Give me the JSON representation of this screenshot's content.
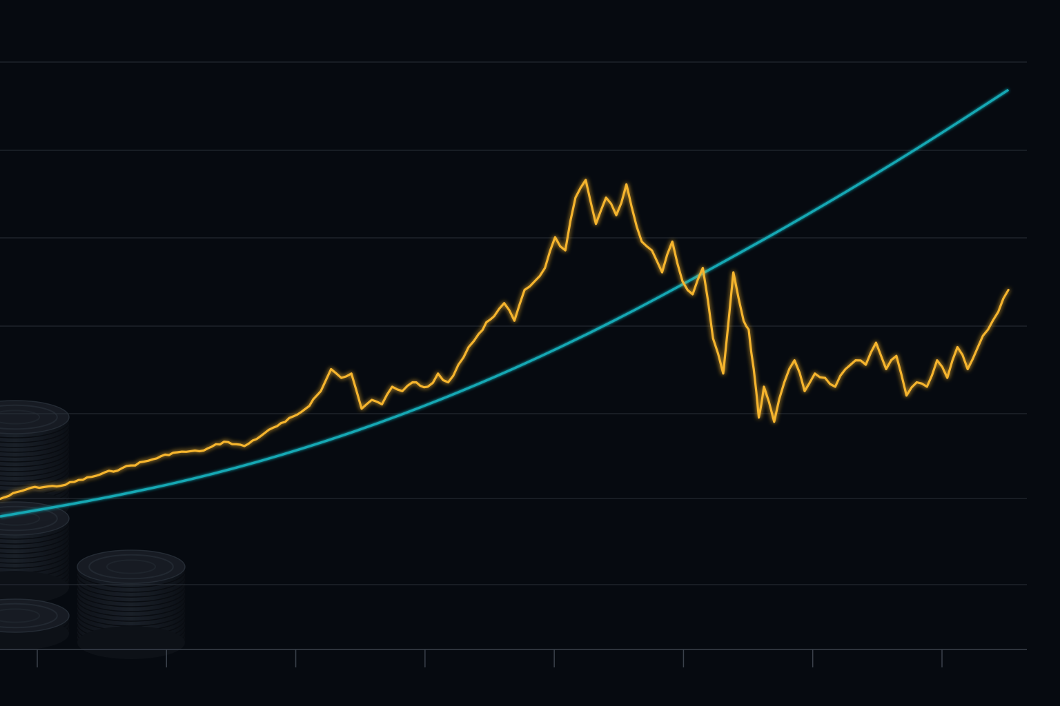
{
  "colors": {
    "background": "#060a10",
    "gridline": "#2a3039",
    "axis": "#3a414b",
    "price_line": "#f6b52e",
    "trend_line": "#12a8b4",
    "coin": "#1a1f27"
  },
  "decoration": {
    "icon": "coin-stack-icon"
  },
  "chart_data": {
    "type": "line",
    "title": "",
    "xlabel": "",
    "ylabel": "",
    "x_ticks": 8,
    "xlim": [
      0,
      100
    ],
    "ylim": [
      0,
      100
    ],
    "grid": true,
    "legend": "none",
    "series": [
      {
        "role": "price",
        "color": "#f6b52e",
        "x": [
          0,
          3,
          6,
          9,
          12,
          15,
          17,
          20,
          22,
          24,
          26,
          28,
          30,
          31.5,
          32.5,
          33.5,
          34.5,
          35.5,
          36.5,
          37.5,
          38.5,
          39.5,
          40.5,
          42,
          43,
          44,
          45,
          46,
          47,
          48.5,
          49.5,
          50.5,
          51.5,
          52.5,
          53.5,
          54.5,
          55.5,
          56.5,
          57.5,
          58.5,
          59.5,
          60.5,
          61.5,
          62,
          63,
          64,
          65,
          66,
          67,
          68,
          69,
          70,
          71,
          72,
          73,
          73.5,
          74,
          74.5,
          75,
          76,
          77,
          78,
          79,
          80,
          81,
          82,
          83,
          84,
          85,
          86,
          87,
          88,
          89,
          90,
          91,
          92,
          93,
          94,
          95,
          96,
          97,
          98,
          99
        ],
        "y": [
          19.5,
          22,
          22.5,
          24.5,
          26.5,
          28.5,
          30,
          30.5,
          32.5,
          31.5,
          34.5,
          37,
          40,
          44,
          49,
          47,
          48,
          40,
          42,
          41,
          45,
          44,
          46,
          45,
          48,
          46,
          50,
          54,
          57,
          61,
          64,
          60,
          67,
          69,
          72,
          79,
          76,
          88,
          92,
          82,
          88,
          84,
          91,
          86,
          78,
          76,
          71,
          78,
          69,
          66,
          72,
          56,
          48,
          71,
          60,
          58,
          49,
          38,
          45,
          37,
          46,
          51,
          44,
          48,
          47,
          45,
          49,
          51,
          50,
          55,
          49,
          52,
          43,
          46,
          45,
          51,
          47,
          54,
          49,
          54,
          58,
          62,
          67
        ]
      },
      {
        "role": "trend",
        "color": "#12a8b4",
        "x": [
          0,
          10,
          20,
          30,
          40,
          50,
          60,
          70,
          80,
          90,
          99
        ],
        "y": [
          15.5,
          19.5,
          24.5,
          31,
          39,
          48.5,
          59.5,
          72,
          85,
          99,
          112.5
        ]
      }
    ]
  }
}
